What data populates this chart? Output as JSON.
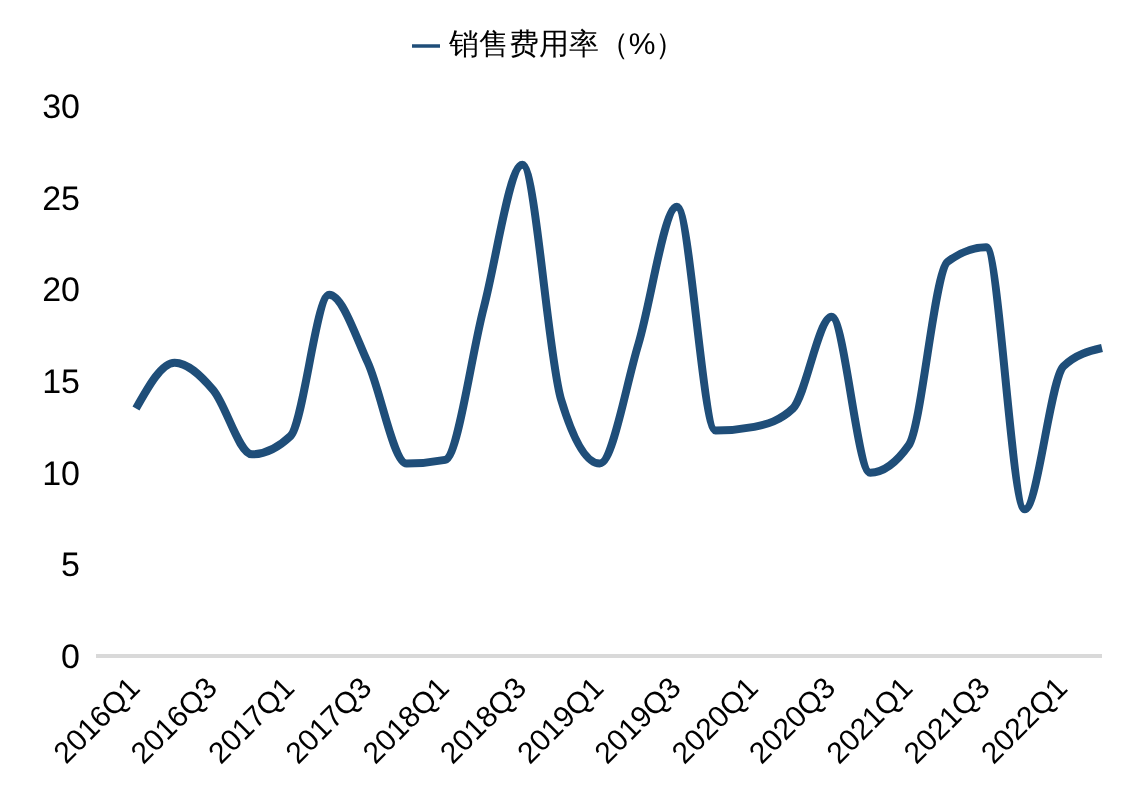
{
  "chart_data": {
    "type": "line",
    "categories": [
      "2016Q1",
      null,
      "2016Q3",
      null,
      "2017Q1",
      null,
      "2017Q3",
      null,
      "2018Q1",
      null,
      "2018Q3",
      null,
      "2019Q1",
      null,
      "2019Q3",
      null,
      "2020Q1",
      null,
      "2020Q3",
      null,
      "2021Q1",
      null,
      "2021Q3",
      null,
      "2022Q1",
      null
    ],
    "series": [
      {
        "name": "销售费用率（%）",
        "color": "#1f4e79",
        "values": [
          13.5,
          16,
          14.5,
          11,
          12,
          19.7,
          16,
          10.5,
          10.7,
          19,
          26.8,
          14,
          10.5,
          17,
          24.5,
          12.3,
          12.5,
          13.5,
          18.5,
          10,
          11.5,
          21.5,
          22.3,
          8,
          15.8,
          16.8
        ]
      }
    ],
    "ylim": [
      0,
      30
    ],
    "yticks": [
      0,
      5,
      10,
      15,
      20,
      25,
      30
    ],
    "grid": false,
    "legend": "top",
    "marker": "none",
    "line_style": "solid"
  }
}
